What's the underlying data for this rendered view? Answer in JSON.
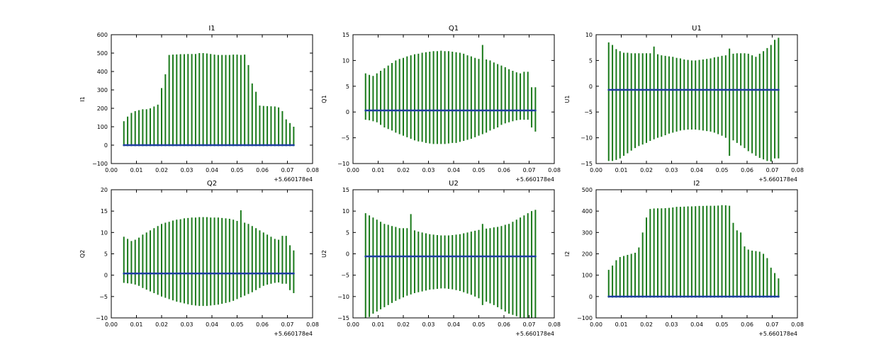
{
  "chart_data": [
    {
      "type": "errorbar",
      "title": "I1",
      "ylabel": "I1",
      "x_offset_label": "+5.660178e4",
      "xlim": [
        0.0,
        0.08
      ],
      "ylim": [
        -100,
        600
      ],
      "xticks": [
        "0.00",
        "0.01",
        "0.02",
        "0.03",
        "0.04",
        "0.05",
        "0.06",
        "0.07",
        "0.08"
      ],
      "yticks": [
        "−100",
        "0",
        "100",
        "200",
        "300",
        "400",
        "500",
        "600"
      ],
      "ytick_values": [
        -100,
        0,
        100,
        200,
        300,
        400,
        500,
        600
      ],
      "series_color": "#1f3f9f",
      "errorbar_color": "#1a7a1a",
      "x": [
        0.005,
        0.0065,
        0.008,
        0.0095,
        0.011,
        0.0125,
        0.014,
        0.0155,
        0.017,
        0.0185,
        0.02,
        0.0215,
        0.023,
        0.0245,
        0.026,
        0.0275,
        0.029,
        0.0305,
        0.032,
        0.0335,
        0.035,
        0.0365,
        0.038,
        0.0395,
        0.041,
        0.0425,
        0.044,
        0.0455,
        0.047,
        0.0485,
        0.05,
        0.0515,
        0.053,
        0.0545,
        0.056,
        0.0575,
        0.059,
        0.0605,
        0.062,
        0.0635,
        0.065,
        0.0665,
        0.068,
        0.0695,
        0.071,
        0.0725
      ],
      "y": [
        0,
        0,
        0,
        0,
        0,
        0,
        0,
        0,
        0,
        0,
        0,
        0,
        0,
        0,
        0,
        0,
        0,
        0,
        0,
        0,
        0,
        0,
        0,
        0,
        0,
        0,
        0,
        0,
        0,
        0,
        0,
        0,
        0,
        0,
        0,
        0,
        0,
        0,
        0,
        0,
        0,
        0,
        0,
        0,
        0,
        0
      ],
      "err": [
        130,
        155,
        175,
        185,
        190,
        195,
        195,
        200,
        210,
        220,
        310,
        385,
        490,
        492,
        493,
        494,
        494,
        495,
        495,
        495,
        500,
        500,
        498,
        495,
        492,
        490,
        490,
        490,
        490,
        492,
        492,
        490,
        492,
        435,
        335,
        290,
        215,
        213,
        212,
        211,
        210,
        205,
        185,
        140,
        120,
        100
      ],
      "err_low": [
        5,
        5,
        5,
        5,
        5,
        5,
        5,
        5,
        5,
        5,
        5,
        5,
        5,
        5,
        5,
        5,
        5,
        5,
        5,
        5,
        5,
        5,
        5,
        5,
        5,
        5,
        5,
        5,
        5,
        5,
        5,
        5,
        5,
        5,
        5,
        5,
        5,
        5,
        5,
        5,
        5,
        5,
        5,
        5,
        5,
        5
      ]
    },
    {
      "type": "errorbar",
      "title": "Q1",
      "ylabel": "Q1",
      "x_offset_label": "+5.660178e4",
      "xlim": [
        0.0,
        0.08
      ],
      "ylim": [
        -10,
        15
      ],
      "xticks": [
        "0.00",
        "0.01",
        "0.02",
        "0.03",
        "0.04",
        "0.05",
        "0.06",
        "0.07",
        "0.08"
      ],
      "yticks": [
        "−10",
        "−5",
        "0",
        "5",
        "10",
        "15"
      ],
      "ytick_values": [
        -10,
        -5,
        0,
        5,
        10,
        15
      ],
      "series_color": "#1f3f9f",
      "errorbar_color": "#1a7a1a",
      "x": [
        0.005,
        0.0065,
        0.008,
        0.0095,
        0.011,
        0.0125,
        0.014,
        0.0155,
        0.017,
        0.0185,
        0.02,
        0.0215,
        0.023,
        0.0245,
        0.026,
        0.0275,
        0.029,
        0.0305,
        0.032,
        0.0335,
        0.035,
        0.0365,
        0.038,
        0.0395,
        0.041,
        0.0425,
        0.044,
        0.0455,
        0.047,
        0.0485,
        0.05,
        0.0515,
        0.053,
        0.0545,
        0.056,
        0.0575,
        0.059,
        0.0605,
        0.062,
        0.0635,
        0.065,
        0.0665,
        0.068,
        0.0695,
        0.071,
        0.0725
      ],
      "y": [
        0.3,
        0.3,
        0.3,
        0.3,
        0.3,
        0.3,
        0.3,
        0.3,
        0.3,
        0.3,
        0.3,
        0.3,
        0.3,
        0.3,
        0.3,
        0.3,
        0.3,
        0.3,
        0.3,
        0.3,
        0.3,
        0.3,
        0.3,
        0.3,
        0.3,
        0.3,
        0.3,
        0.3,
        0.3,
        0.3,
        0.3,
        0.3,
        0.3,
        0.3,
        0.3,
        0.3,
        0.3,
        0.3,
        0.3,
        0.3,
        0.3,
        0.3,
        0.3,
        0.3,
        0.3,
        0.3
      ],
      "y_high": [
        7.5,
        7.2,
        7.0,
        7.5,
        8.0,
        8.5,
        9.0,
        9.5,
        10.0,
        10.3,
        10.5,
        10.8,
        11.0,
        11.2,
        11.3,
        11.5,
        11.6,
        11.7,
        11.8,
        11.8,
        11.9,
        11.8,
        11.8,
        11.7,
        11.6,
        11.5,
        11.3,
        11.0,
        10.8,
        10.5,
        10.3,
        13.0,
        10.2,
        10.0,
        9.6,
        9.3,
        9.0,
        8.7,
        8.3,
        8.0,
        7.7,
        7.5,
        7.8,
        7.8,
        4.8,
        4.8
      ],
      "y_low": [
        -1.5,
        -1.6,
        -1.8,
        -2.0,
        -2.5,
        -3.0,
        -3.3,
        -3.6,
        -4.0,
        -4.3,
        -4.6,
        -4.9,
        -5.2,
        -5.5,
        -5.7,
        -5.8,
        -6.0,
        -6.1,
        -6.2,
        -6.2,
        -6.2,
        -6.2,
        -6.1,
        -6.0,
        -6.0,
        -5.8,
        -5.6,
        -5.4,
        -5.2,
        -4.9,
        -4.6,
        -4.3,
        -4.0,
        -3.6,
        -3.3,
        -3.0,
        -2.5,
        -2.2,
        -2.0,
        -1.8,
        -1.6,
        -1.5,
        -1.5,
        -1.5,
        -3.0,
        -3.8
      ]
    },
    {
      "type": "errorbar",
      "title": "U1",
      "ylabel": "U1",
      "x_offset_label": "+5.660178e4",
      "xlim": [
        0.0,
        0.08
      ],
      "ylim": [
        -15,
        10
      ],
      "xticks": [
        "0.00",
        "0.01",
        "0.02",
        "0.03",
        "0.04",
        "0.05",
        "0.06",
        "0.07",
        "0.08"
      ],
      "yticks": [
        "−15",
        "−10",
        "−5",
        "0",
        "5",
        "10"
      ],
      "ytick_values": [
        -15,
        -10,
        -5,
        0,
        5,
        10
      ],
      "series_color": "#1f3f9f",
      "errorbar_color": "#1a7a1a",
      "x": [
        0.005,
        0.0065,
        0.008,
        0.0095,
        0.011,
        0.0125,
        0.014,
        0.0155,
        0.017,
        0.0185,
        0.02,
        0.0215,
        0.023,
        0.0245,
        0.026,
        0.0275,
        0.029,
        0.0305,
        0.032,
        0.0335,
        0.035,
        0.0365,
        0.038,
        0.0395,
        0.041,
        0.0425,
        0.044,
        0.0455,
        0.047,
        0.0485,
        0.05,
        0.0515,
        0.053,
        0.0545,
        0.056,
        0.0575,
        0.059,
        0.0605,
        0.062,
        0.0635,
        0.065,
        0.0665,
        0.068,
        0.0695,
        0.071,
        0.0725
      ],
      "y": [
        -0.7,
        -0.7,
        -0.7,
        -0.7,
        -0.7,
        -0.7,
        -0.7,
        -0.7,
        -0.7,
        -0.7,
        -0.7,
        -0.7,
        -0.7,
        -0.7,
        -0.7,
        -0.7,
        -0.7,
        -0.7,
        -0.7,
        -0.7,
        -0.7,
        -0.7,
        -0.7,
        -0.7,
        -0.7,
        -0.7,
        -0.7,
        -0.7,
        -0.7,
        -0.7,
        -0.7,
        -0.7,
        -0.7,
        -0.7,
        -0.7,
        -0.7,
        -0.7,
        -0.7,
        -0.7,
        -0.7,
        -0.7,
        -0.7,
        -0.7,
        -0.7,
        -0.7,
        -0.7
      ],
      "y_high": [
        8.5,
        8.0,
        7.2,
        6.8,
        6.5,
        6.5,
        6.4,
        6.4,
        6.4,
        6.4,
        6.4,
        6.4,
        7.7,
        6.2,
        6.0,
        5.9,
        5.8,
        5.7,
        5.5,
        5.4,
        5.2,
        5.1,
        5.0,
        5.0,
        5.1,
        5.2,
        5.3,
        5.4,
        5.6,
        5.7,
        5.9,
        6.0,
        7.3,
        6.3,
        6.4,
        6.4,
        6.4,
        6.3,
        6.0,
        5.7,
        6.3,
        6.8,
        7.4,
        8.0,
        9.0,
        9.4
      ],
      "y_low": [
        -14.5,
        -14.5,
        -14.3,
        -14.0,
        -13.5,
        -13.0,
        -12.5,
        -12.0,
        -11.6,
        -11.3,
        -11.0,
        -10.6,
        -10.3,
        -10.0,
        -9.8,
        -9.5,
        -9.2,
        -9.0,
        -8.8,
        -8.6,
        -8.5,
        -8.4,
        -8.4,
        -8.4,
        -8.5,
        -8.6,
        -8.7,
        -8.8,
        -9.0,
        -9.3,
        -9.6,
        -10.0,
        -13.5,
        -10.5,
        -11.0,
        -11.5,
        -12.0,
        -12.6,
        -13.0,
        -13.5,
        -13.9,
        -14.2,
        -14.5,
        -14.6,
        -14.0,
        -14.0
      ]
    },
    {
      "type": "errorbar",
      "title": "Q2",
      "ylabel": "Q2",
      "x_offset_label": "+5.660178e4",
      "xlim": [
        0.0,
        0.08
      ],
      "ylim": [
        -10,
        20
      ],
      "xticks": [
        "0.00",
        "0.01",
        "0.02",
        "0.03",
        "0.04",
        "0.05",
        "0.06",
        "0.07",
        "0.08"
      ],
      "yticks": [
        "−10",
        "−5",
        "0",
        "5",
        "10",
        "15",
        "20"
      ],
      "ytick_values": [
        -10,
        -5,
        0,
        5,
        10,
        15,
        20
      ],
      "series_color": "#1f3f9f",
      "errorbar_color": "#1a7a1a",
      "x": [
        0.005,
        0.0065,
        0.008,
        0.0095,
        0.011,
        0.0125,
        0.014,
        0.0155,
        0.017,
        0.0185,
        0.02,
        0.0215,
        0.023,
        0.0245,
        0.026,
        0.0275,
        0.029,
        0.0305,
        0.032,
        0.0335,
        0.035,
        0.0365,
        0.038,
        0.0395,
        0.041,
        0.0425,
        0.044,
        0.0455,
        0.047,
        0.0485,
        0.05,
        0.0515,
        0.053,
        0.0545,
        0.056,
        0.0575,
        0.059,
        0.0605,
        0.062,
        0.0635,
        0.065,
        0.0665,
        0.068,
        0.0695,
        0.071,
        0.0725
      ],
      "y": [
        0.4,
        0.4,
        0.4,
        0.4,
        0.4,
        0.4,
        0.4,
        0.4,
        0.4,
        0.4,
        0.4,
        0.4,
        0.4,
        0.4,
        0.4,
        0.4,
        0.4,
        0.4,
        0.4,
        0.4,
        0.4,
        0.4,
        0.4,
        0.4,
        0.4,
        0.4,
        0.4,
        0.4,
        0.4,
        0.4,
        0.4,
        0.4,
        0.4,
        0.4,
        0.4,
        0.4,
        0.4,
        0.4,
        0.4,
        0.4,
        0.4,
        0.4,
        0.4,
        0.4,
        0.4,
        0.4
      ],
      "y_high": [
        9.0,
        8.5,
        8.0,
        8.3,
        8.8,
        9.5,
        10.0,
        10.5,
        11.0,
        11.5,
        12.0,
        12.3,
        12.5,
        12.8,
        13.0,
        13.1,
        13.3,
        13.4,
        13.5,
        13.5,
        13.6,
        13.6,
        13.6,
        13.5,
        13.5,
        13.5,
        13.4,
        13.3,
        13.2,
        13.0,
        12.7,
        15.2,
        12.3,
        12.0,
        11.5,
        11.0,
        10.5,
        10.0,
        9.5,
        9.0,
        8.5,
        8.3,
        9.2,
        9.2,
        7.0,
        5.8
      ],
      "y_low": [
        -1.8,
        -1.9,
        -2.0,
        -2.2,
        -2.5,
        -3.0,
        -3.4,
        -3.8,
        -4.2,
        -4.6,
        -5.0,
        -5.3,
        -5.6,
        -5.9,
        -6.2,
        -6.4,
        -6.6,
        -6.8,
        -7.0,
        -7.1,
        -7.2,
        -7.2,
        -7.2,
        -7.1,
        -7.0,
        -6.9,
        -6.7,
        -6.5,
        -6.3,
        -6.0,
        -5.6,
        -5.2,
        -4.8,
        -4.4,
        -4.0,
        -3.5,
        -3.0,
        -2.5,
        -2.2,
        -2.0,
        -1.8,
        -1.7,
        -2.0,
        -2.0,
        -3.5,
        -4.2
      ]
    },
    {
      "type": "errorbar",
      "title": "U2",
      "ylabel": "U2",
      "x_offset_label": "+5.660178e4",
      "xlim": [
        0.0,
        0.08
      ],
      "ylim": [
        -15,
        15
      ],
      "xticks": [
        "0.00",
        "0.01",
        "0.02",
        "0.03",
        "0.04",
        "0.05",
        "0.06",
        "0.07",
        "0.08"
      ],
      "yticks": [
        "−15",
        "−10",
        "−5",
        "0",
        "5",
        "10",
        "15"
      ],
      "ytick_values": [
        -15,
        -10,
        -5,
        0,
        5,
        10,
        15
      ],
      "series_color": "#1f3f9f",
      "errorbar_color": "#1a7a1a",
      "x": [
        0.005,
        0.0065,
        0.008,
        0.0095,
        0.011,
        0.0125,
        0.014,
        0.0155,
        0.017,
        0.0185,
        0.02,
        0.0215,
        0.023,
        0.0245,
        0.026,
        0.0275,
        0.029,
        0.0305,
        0.032,
        0.0335,
        0.035,
        0.0365,
        0.038,
        0.0395,
        0.041,
        0.0425,
        0.044,
        0.0455,
        0.047,
        0.0485,
        0.05,
        0.0515,
        0.053,
        0.0545,
        0.056,
        0.0575,
        0.059,
        0.0605,
        0.062,
        0.0635,
        0.065,
        0.0665,
        0.068,
        0.0695,
        0.071,
        0.0725
      ],
      "y": [
        -0.6,
        -0.6,
        -0.6,
        -0.6,
        -0.6,
        -0.6,
        -0.6,
        -0.6,
        -0.6,
        -0.6,
        -0.6,
        -0.6,
        -0.6,
        -0.6,
        -0.6,
        -0.6,
        -0.6,
        -0.6,
        -0.6,
        -0.6,
        -0.6,
        -0.6,
        -0.6,
        -0.6,
        -0.6,
        -0.6,
        -0.6,
        -0.6,
        -0.6,
        -0.6,
        -0.6,
        -0.6,
        -0.6,
        -0.6,
        -0.6,
        -0.6,
        -0.6,
        -0.6,
        -0.6,
        -0.6,
        -0.6,
        -0.6,
        -0.6,
        -0.6,
        -0.6,
        -0.6
      ],
      "y_high": [
        9.5,
        9.0,
        8.5,
        8.0,
        7.5,
        7.0,
        6.8,
        6.5,
        6.3,
        6.0,
        6.0,
        6.0,
        9.3,
        5.5,
        5.2,
        5.0,
        4.8,
        4.6,
        4.5,
        4.4,
        4.3,
        4.3,
        4.3,
        4.4,
        4.5,
        4.6,
        4.8,
        5.0,
        5.2,
        5.4,
        5.6,
        7.0,
        5.9,
        6.0,
        6.2,
        6.3,
        6.5,
        6.8,
        7.0,
        7.5,
        8.0,
        8.5,
        9.0,
        9.5,
        10.0,
        10.3
      ],
      "y_low": [
        -15.0,
        -14.8,
        -14.0,
        -13.5,
        -13.0,
        -12.5,
        -12.0,
        -11.5,
        -11.0,
        -10.6,
        -10.2,
        -9.8,
        -9.5,
        -9.2,
        -9.0,
        -8.8,
        -8.6,
        -8.4,
        -8.3,
        -8.2,
        -8.1,
        -8.1,
        -8.2,
        -8.3,
        -8.5,
        -8.7,
        -9.0,
        -9.3,
        -9.6,
        -10.0,
        -10.4,
        -12.0,
        -11.2,
        -11.6,
        -12.0,
        -12.5,
        -13.0,
        -13.5,
        -14.0,
        -14.3,
        -14.6,
        -14.9,
        -15.0,
        -15.0,
        -15.0,
        -15.0
      ]
    },
    {
      "type": "errorbar",
      "title": "I2",
      "ylabel": "I2",
      "x_offset_label": "+5.660178e4",
      "xlim": [
        0.0,
        0.08
      ],
      "ylim": [
        -100,
        500
      ],
      "xticks": [
        "0.00",
        "0.01",
        "0.02",
        "0.03",
        "0.04",
        "0.05",
        "0.06",
        "0.07",
        "0.08"
      ],
      "yticks": [
        "−100",
        "0",
        "100",
        "200",
        "300",
        "400",
        "500"
      ],
      "ytick_values": [
        -100,
        0,
        100,
        200,
        300,
        400,
        500
      ],
      "series_color": "#1f3f9f",
      "errorbar_color": "#1a7a1a",
      "x": [
        0.005,
        0.0065,
        0.008,
        0.0095,
        0.011,
        0.0125,
        0.014,
        0.0155,
        0.017,
        0.0185,
        0.02,
        0.0215,
        0.023,
        0.0245,
        0.026,
        0.0275,
        0.029,
        0.0305,
        0.032,
        0.0335,
        0.035,
        0.0365,
        0.038,
        0.0395,
        0.041,
        0.0425,
        0.044,
        0.0455,
        0.047,
        0.0485,
        0.05,
        0.0515,
        0.053,
        0.0545,
        0.056,
        0.0575,
        0.059,
        0.0605,
        0.062,
        0.0635,
        0.065,
        0.0665,
        0.068,
        0.0695,
        0.071,
        0.0725
      ],
      "y": [
        0,
        0,
        0,
        0,
        0,
        0,
        0,
        0,
        0,
        0,
        0,
        0,
        0,
        0,
        0,
        0,
        0,
        0,
        0,
        0,
        0,
        0,
        0,
        0,
        0,
        0,
        0,
        0,
        0,
        0,
        0,
        0,
        0,
        0,
        0,
        0,
        0,
        0,
        0,
        0,
        0,
        0,
        0,
        0,
        0,
        0
      ],
      "err": [
        125,
        145,
        170,
        185,
        190,
        195,
        200,
        205,
        230,
        300,
        370,
        410,
        412,
        413,
        413,
        414,
        415,
        417,
        420,
        420,
        421,
        422,
        422,
        423,
        424,
        424,
        425,
        425,
        425,
        426,
        428,
        427,
        425,
        345,
        310,
        300,
        235,
        220,
        215,
        213,
        210,
        200,
        180,
        135,
        110,
        85
      ],
      "err_low": [
        5,
        5,
        5,
        5,
        5,
        5,
        5,
        5,
        5,
        5,
        5,
        5,
        5,
        5,
        5,
        5,
        5,
        5,
        5,
        5,
        5,
        5,
        5,
        5,
        5,
        5,
        5,
        5,
        5,
        5,
        5,
        5,
        5,
        5,
        5,
        5,
        5,
        5,
        5,
        5,
        5,
        5,
        5,
        5,
        5,
        5
      ]
    }
  ]
}
